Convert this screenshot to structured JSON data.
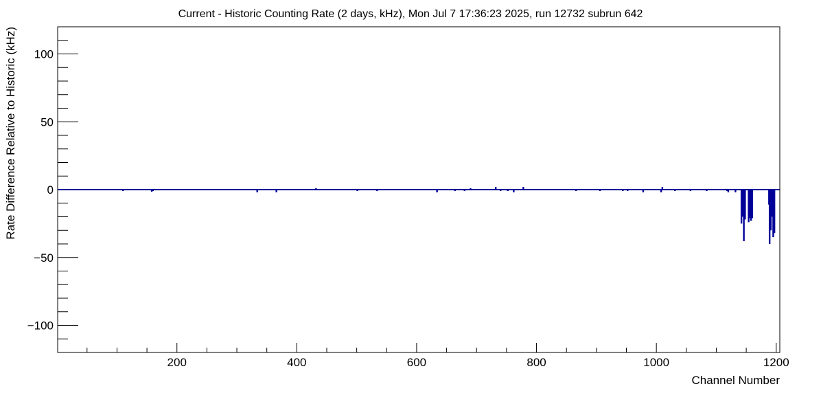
{
  "chart_data": {
    "type": "bar",
    "title": "Current - Historic Counting Rate (2 days, kHz), Mon Jul  7 17:36:23 2025, run 12732 subrun 642",
    "xlabel": "Channel Number",
    "ylabel": "Rate Difference Relative to Historic (kHz)",
    "xlim": [
      1,
      1206
    ],
    "ylim": [
      -120,
      120
    ],
    "x_ticks": [
      200,
      400,
      600,
      800,
      1000,
      1200
    ],
    "y_ticks": [
      -100,
      -50,
      0,
      50,
      100
    ],
    "x_tick_labels": [
      "200",
      "400",
      "600",
      "800",
      "1000",
      "1200"
    ],
    "y_tick_labels": [
      "−100",
      "−50",
      "0",
      "50",
      "100"
    ],
    "grid": false,
    "legend": "none",
    "series_color": "#000099",
    "baseline": 0,
    "deviations": [
      {
        "channel": 110,
        "value": -1
      },
      {
        "channel": 158,
        "value": -1.5
      },
      {
        "channel": 160,
        "value": -1
      },
      {
        "channel": 334,
        "value": -2
      },
      {
        "channel": 366,
        "value": -2
      },
      {
        "channel": 432,
        "value": 1
      },
      {
        "channel": 501,
        "value": -1
      },
      {
        "channel": 534,
        "value": -1
      },
      {
        "channel": 634,
        "value": -2
      },
      {
        "channel": 664,
        "value": -1
      },
      {
        "channel": 680,
        "value": -1
      },
      {
        "channel": 690,
        "value": 1
      },
      {
        "channel": 732,
        "value": 2
      },
      {
        "channel": 740,
        "value": -1
      },
      {
        "channel": 752,
        "value": -1
      },
      {
        "channel": 762,
        "value": -2
      },
      {
        "channel": 778,
        "value": 2
      },
      {
        "channel": 866,
        "value": -1
      },
      {
        "channel": 906,
        "value": -1
      },
      {
        "channel": 944,
        "value": -1
      },
      {
        "channel": 952,
        "value": -1
      },
      {
        "channel": 978,
        "value": -2
      },
      {
        "channel": 1008,
        "value": -2
      },
      {
        "channel": 1010,
        "value": 2
      },
      {
        "channel": 1031,
        "value": -1
      },
      {
        "channel": 1057,
        "value": -1
      },
      {
        "channel": 1084,
        "value": -1
      },
      {
        "channel": 1118,
        "value": -1
      },
      {
        "channel": 1120,
        "value": -2
      },
      {
        "channel": 1132,
        "value": -2
      },
      {
        "channel": 1142,
        "value": -25
      },
      {
        "channel": 1144,
        "value": -20
      },
      {
        "channel": 1146,
        "value": -38
      },
      {
        "channel": 1148,
        "value": -22
      },
      {
        "channel": 1154,
        "value": -24
      },
      {
        "channel": 1156,
        "value": -21
      },
      {
        "channel": 1158,
        "value": -23
      },
      {
        "channel": 1160,
        "value": -21
      },
      {
        "channel": 1188,
        "value": -11
      },
      {
        "channel": 1189,
        "value": -40
      },
      {
        "channel": 1191,
        "value": -30
      },
      {
        "channel": 1193,
        "value": -20
      },
      {
        "channel": 1195,
        "value": -35
      },
      {
        "channel": 1197,
        "value": -32
      }
    ]
  }
}
